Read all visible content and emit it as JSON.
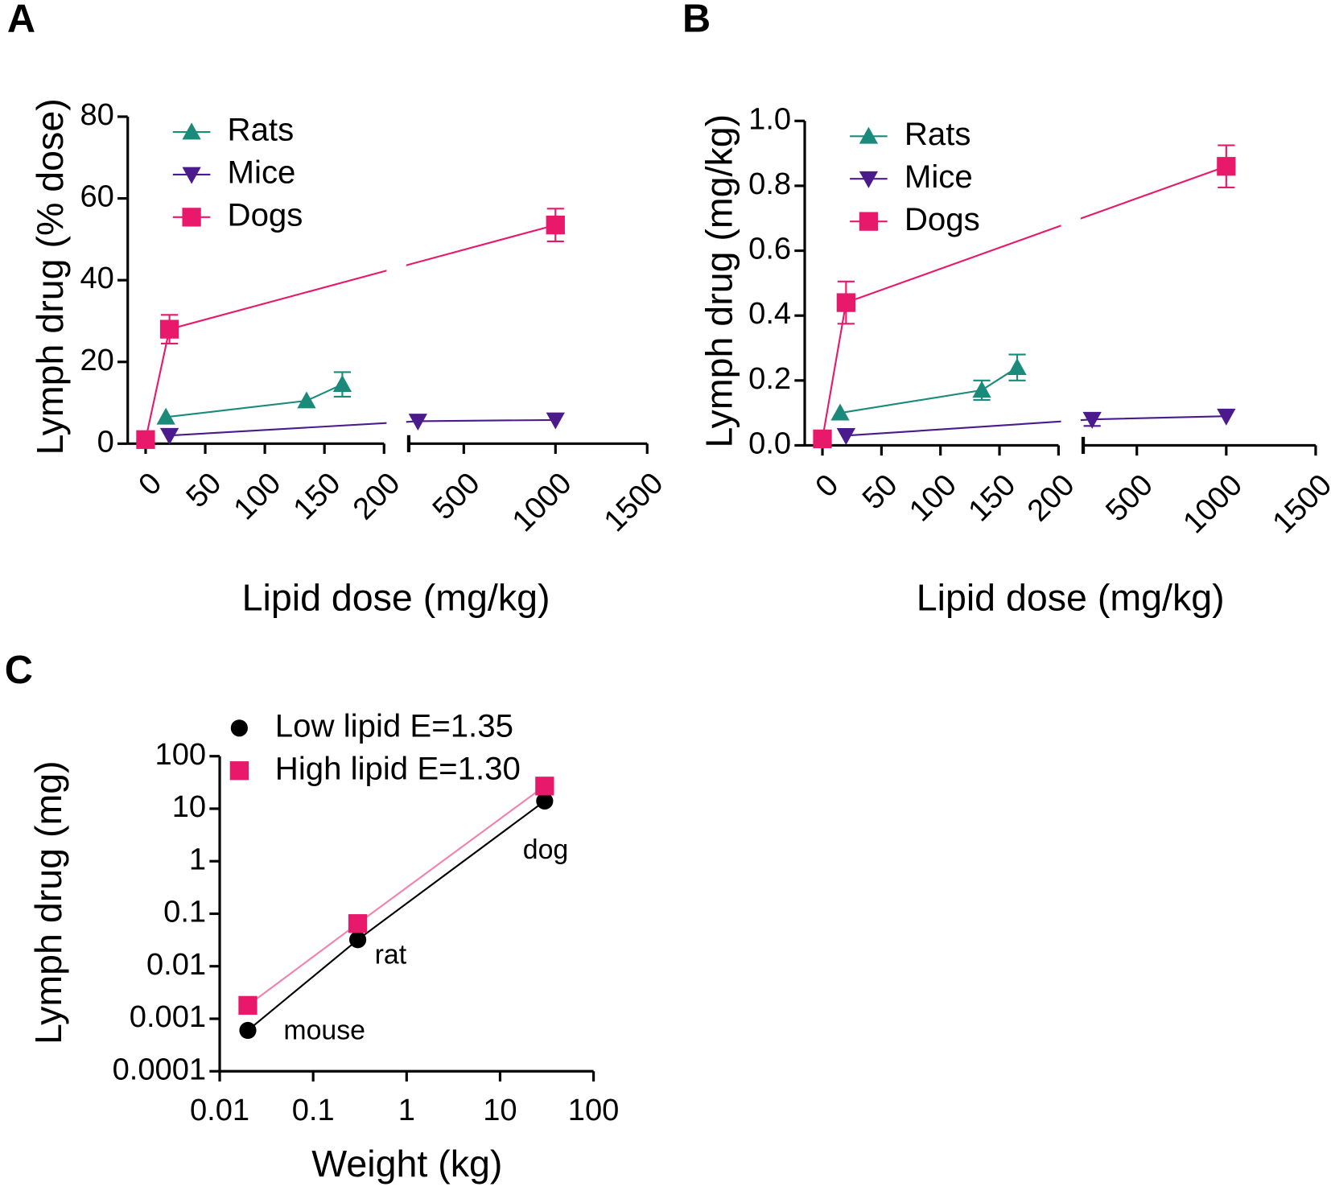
{
  "chart_data": [
    {
      "type": "line",
      "panel_label": "A",
      "xlabel": "Lipid dose (mg/kg)",
      "ylabel": "Lymph drug (% dose)",
      "xsegments": [
        {
          "xlim": [
            -15,
            200
          ],
          "xticks": [
            0,
            50,
            100,
            150,
            200
          ]
        },
        {
          "xlim": [
            200,
            1500
          ],
          "xticks": [
            500,
            1000,
            1500
          ]
        }
      ],
      "ylim": [
        0,
        80
      ],
      "yticks": [
        0,
        20,
        40,
        60,
        80
      ],
      "series": [
        {
          "name": "Rats",
          "color": "#1a8a7a",
          "marker": "triangle-up",
          "x": [
            17,
            135,
            165
          ],
          "values": [
            6.5,
            10.5,
            14.5
          ],
          "errors": [
            null,
            null,
            3
          ]
        },
        {
          "name": "Mice",
          "color": "#4b1a8c",
          "marker": "triangle-down",
          "x": [
            20,
            250,
            1000
          ],
          "values": [
            2,
            5.5,
            5.8
          ],
          "errors": [
            null,
            null,
            null
          ]
        },
        {
          "name": "Dogs",
          "color": "#e8196b",
          "marker": "square",
          "x": [
            0,
            20,
            1000
          ],
          "values": [
            1,
            28,
            53.5
          ],
          "errors": [
            null,
            3.5,
            4
          ]
        }
      ]
    },
    {
      "type": "line",
      "panel_label": "B",
      "xlabel": "Lipid dose (mg/kg)",
      "ylabel": "Lymph drug (mg/kg)",
      "xsegments": [
        {
          "xlim": [
            -15,
            200
          ],
          "xticks": [
            0,
            50,
            100,
            150,
            200
          ]
        },
        {
          "xlim": [
            200,
            1500
          ],
          "xticks": [
            500,
            1000,
            1500
          ]
        }
      ],
      "ylim": [
        0,
        1
      ],
      "yticks": [
        {
          "value": 0,
          "label": "0.0"
        },
        0.2,
        0.4,
        0.6,
        0.8,
        {
          "value": 1,
          "label": "1.0"
        }
      ],
      "series": [
        {
          "name": "Rats",
          "color": "#1a8a7a",
          "marker": "triangle-up",
          "x": [
            15,
            135,
            165
          ],
          "values": [
            0.1,
            0.17,
            0.24
          ],
          "errors": [
            null,
            0.03,
            0.04
          ]
        },
        {
          "name": "Mice",
          "color": "#4b1a8c",
          "marker": "triangle-down",
          "x": [
            20,
            250,
            1000
          ],
          "values": [
            0.03,
            0.08,
            0.09
          ],
          "errors": [
            null,
            0.02,
            null
          ]
        },
        {
          "name": "Dogs",
          "color": "#e8196b",
          "marker": "square",
          "x": [
            0,
            20,
            1000
          ],
          "values": [
            0.02,
            0.44,
            0.86
          ],
          "errors": [
            null,
            0.065,
            0.065
          ]
        }
      ]
    },
    {
      "type": "line",
      "panel_label": "C",
      "xlabel": "Weight (kg)",
      "ylabel": "Lymph drug (mg)",
      "xscale": "log",
      "yscale": "log",
      "xsegments": [
        {
          "xlim": [
            0.01,
            100
          ],
          "xticks": [
            0.01,
            0.1,
            1,
            10,
            100
          ]
        }
      ],
      "ylim": [
        0.0001,
        100
      ],
      "yticks": [
        0.0001,
        0.001,
        0.01,
        0.1,
        1,
        10,
        100
      ],
      "annotations": [
        "mouse",
        "rat",
        "dog"
      ],
      "series": [
        {
          "name": "Low lipid E=1.35",
          "color": "#000000",
          "marker": "circle",
          "x": [
            0.02,
            0.3,
            30
          ],
          "values": [
            0.0006,
            0.032,
            14
          ]
        },
        {
          "name": "High lipid E=1.30",
          "color": "#e8196b",
          "marker": "square",
          "x": [
            0.02,
            0.3,
            30
          ],
          "values": [
            0.0018,
            0.065,
            27
          ]
        }
      ]
    }
  ]
}
